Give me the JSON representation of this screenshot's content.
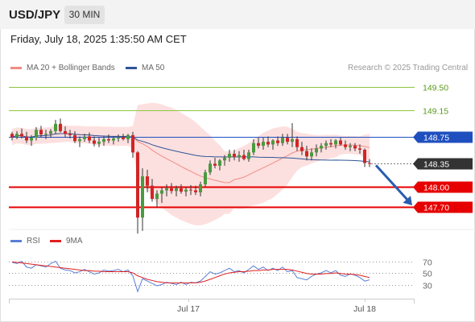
{
  "header": {
    "symbol": "USD/JPY",
    "timeframe": "30 MIN"
  },
  "datetime": "Friday, July 18, 2025 1:35:50 AM CET",
  "legend": {
    "ma20": "MA 20 + Bollinger Bands",
    "ma50": "MA 50",
    "credit": "Research © 2025 Trading Central",
    "colors": {
      "ma20": "#f28b82",
      "ma50": "#2f5597"
    }
  },
  "rsi_legend": {
    "rsi": "RSI",
    "ma": "9MA",
    "colors": {
      "rsi": "#5b7fd6",
      "ma": "#e02020"
    }
  },
  "chart_data": {
    "type": "candlestick",
    "x_labels": [
      "Jul 17",
      "Jul 18"
    ],
    "ylim": [
      147.35,
      149.65
    ],
    "current_price": 148.35,
    "levels": [
      {
        "value": 149.5,
        "label": "149.50",
        "color": "#8dc63f",
        "style": "line"
      },
      {
        "value": 149.15,
        "label": "149.15",
        "color": "#8dc63f",
        "style": "line"
      },
      {
        "value": 148.75,
        "label": "148.75",
        "color": "#1f4fbf",
        "style": "box"
      },
      {
        "value": 148.35,
        "label": "148.35",
        "color": "#333333",
        "style": "box-dotted"
      },
      {
        "value": 148.0,
        "label": "148.00",
        "color": "#e60000",
        "style": "box"
      },
      {
        "value": 147.7,
        "label": "147.70",
        "color": "#e60000",
        "style": "box"
      }
    ],
    "arrow": {
      "direction": "down",
      "from": 148.35,
      "to": 147.7,
      "color": "#2a5db0"
    },
    "candles": [
      [
        148.8,
        148.83,
        148.7,
        148.75
      ],
      [
        148.75,
        148.84,
        148.72,
        148.8
      ],
      [
        148.8,
        148.88,
        148.73,
        148.76
      ],
      [
        148.76,
        148.83,
        148.66,
        148.7
      ],
      [
        148.7,
        148.78,
        148.62,
        148.74
      ],
      [
        148.74,
        148.9,
        148.7,
        148.86
      ],
      [
        148.86,
        148.92,
        148.75,
        148.79
      ],
      [
        148.79,
        148.86,
        148.72,
        148.8
      ],
      [
        148.8,
        148.87,
        148.74,
        148.84
      ],
      [
        148.84,
        149.01,
        148.8,
        148.95
      ],
      [
        148.95,
        149.03,
        148.82,
        148.84
      ],
      [
        148.84,
        148.91,
        148.75,
        148.8
      ],
      [
        148.8,
        148.86,
        148.73,
        148.78
      ],
      [
        148.78,
        148.84,
        148.66,
        148.69
      ],
      [
        148.69,
        148.76,
        148.6,
        148.72
      ],
      [
        148.72,
        148.8,
        148.68,
        148.76
      ],
      [
        148.76,
        148.82,
        148.66,
        148.7
      ],
      [
        148.7,
        148.76,
        148.61,
        148.65
      ],
      [
        148.65,
        148.74,
        148.6,
        148.68
      ],
      [
        148.68,
        148.76,
        148.62,
        148.72
      ],
      [
        148.72,
        148.79,
        148.66,
        148.7
      ],
      [
        148.7,
        148.76,
        148.64,
        148.73
      ],
      [
        148.73,
        148.79,
        148.68,
        148.75
      ],
      [
        148.75,
        148.8,
        148.7,
        148.72
      ],
      [
        148.72,
        148.8,
        148.66,
        148.78
      ],
      [
        148.78,
        148.83,
        148.44,
        148.52
      ],
      [
        148.52,
        148.54,
        147.3,
        147.54
      ],
      [
        147.54,
        148.28,
        147.34,
        148.16
      ],
      [
        148.16,
        148.26,
        147.92,
        148.02
      ],
      [
        148.02,
        148.12,
        147.78,
        147.82
      ],
      [
        147.82,
        147.95,
        147.7,
        147.9
      ],
      [
        147.9,
        148.0,
        147.76,
        147.95
      ],
      [
        147.95,
        148.04,
        147.86,
        147.98
      ],
      [
        147.98,
        148.06,
        147.9,
        147.94
      ],
      [
        147.94,
        148.02,
        147.86,
        147.98
      ],
      [
        147.98,
        148.04,
        147.9,
        147.93
      ],
      [
        147.93,
        148.0,
        147.86,
        147.96
      ],
      [
        147.96,
        148.03,
        147.88,
        147.95
      ],
      [
        147.95,
        148.02,
        147.88,
        147.92
      ],
      [
        147.92,
        148.08,
        147.86,
        148.04
      ],
      [
        148.04,
        148.26,
        148.0,
        148.22
      ],
      [
        148.22,
        148.4,
        148.18,
        148.35
      ],
      [
        148.35,
        148.44,
        148.28,
        148.32
      ],
      [
        148.32,
        148.42,
        148.25,
        148.4
      ],
      [
        148.4,
        148.48,
        148.32,
        148.44
      ],
      [
        148.44,
        148.56,
        148.38,
        148.5
      ],
      [
        148.5,
        148.56,
        148.4,
        148.45
      ],
      [
        148.45,
        148.54,
        148.38,
        148.48
      ],
      [
        148.48,
        148.56,
        148.4,
        148.42
      ],
      [
        148.42,
        148.56,
        148.38,
        148.52
      ],
      [
        148.52,
        148.72,
        148.48,
        148.66
      ],
      [
        148.66,
        148.74,
        148.58,
        148.62
      ],
      [
        148.62,
        148.74,
        148.56,
        148.68
      ],
      [
        148.68,
        148.76,
        148.6,
        148.64
      ],
      [
        148.64,
        148.72,
        148.56,
        148.7
      ],
      [
        148.7,
        148.76,
        148.62,
        148.66
      ],
      [
        148.66,
        148.8,
        148.62,
        148.74
      ],
      [
        148.74,
        148.8,
        148.64,
        148.68
      ],
      [
        148.68,
        148.96,
        148.6,
        148.72
      ],
      [
        148.72,
        148.76,
        148.54,
        148.6
      ],
      [
        148.6,
        148.68,
        148.48,
        148.54
      ],
      [
        148.54,
        148.62,
        148.4,
        148.46
      ],
      [
        148.46,
        148.58,
        148.4,
        148.52
      ],
      [
        148.52,
        148.64,
        148.46,
        148.58
      ],
      [
        148.58,
        148.66,
        148.52,
        148.62
      ],
      [
        148.62,
        148.7,
        148.56,
        148.66
      ],
      [
        148.66,
        148.72,
        148.6,
        148.64
      ],
      [
        148.64,
        148.72,
        148.58,
        148.7
      ],
      [
        148.7,
        148.74,
        148.62,
        148.64
      ],
      [
        148.64,
        148.7,
        148.56,
        148.6
      ],
      [
        148.6,
        148.66,
        148.54,
        148.62
      ],
      [
        148.62,
        148.66,
        148.54,
        148.58
      ],
      [
        148.58,
        148.64,
        148.5,
        148.56
      ],
      [
        148.56,
        148.58,
        148.3,
        148.36
      ],
      [
        148.36,
        148.42,
        148.3,
        148.35
      ]
    ],
    "rsi": {
      "ylim": [
        10,
        90
      ],
      "ticks": [
        70,
        50,
        30
      ],
      "rsi_values": [
        68,
        66,
        70,
        60,
        58,
        64,
        62,
        60,
        66,
        70,
        58,
        55,
        54,
        50,
        52,
        56,
        52,
        48,
        50,
        55,
        53,
        54,
        56,
        52,
        55,
        45,
        18,
        40,
        36,
        32,
        28,
        30,
        34,
        32,
        30,
        34,
        30,
        34,
        33,
        36,
        44,
        52,
        48,
        50,
        54,
        58,
        52,
        54,
        50,
        56,
        62,
        56,
        60,
        54,
        58,
        54,
        60,
        52,
        54,
        42,
        40,
        38,
        44,
        48,
        50,
        54,
        50,
        54,
        46,
        44,
        48,
        46,
        42,
        36,
        38
      ],
      "ma_values": [
        69,
        68,
        67,
        66,
        65,
        64,
        63,
        62,
        61,
        60,
        59,
        58,
        57,
        56,
        55,
        54,
        54,
        53,
        53,
        52,
        52,
        52,
        52,
        52,
        52,
        50,
        45,
        42,
        39,
        37,
        35,
        34,
        33,
        33,
        33,
        33,
        33,
        33,
        33,
        34,
        36,
        39,
        42,
        45,
        48,
        50,
        51,
        52,
        52,
        53,
        54,
        54,
        55,
        55,
        56,
        56,
        56,
        56,
        55,
        53,
        51,
        49,
        48,
        48,
        48,
        49,
        49,
        50,
        49,
        48,
        48,
        47,
        46,
        44,
        42
      ]
    }
  }
}
